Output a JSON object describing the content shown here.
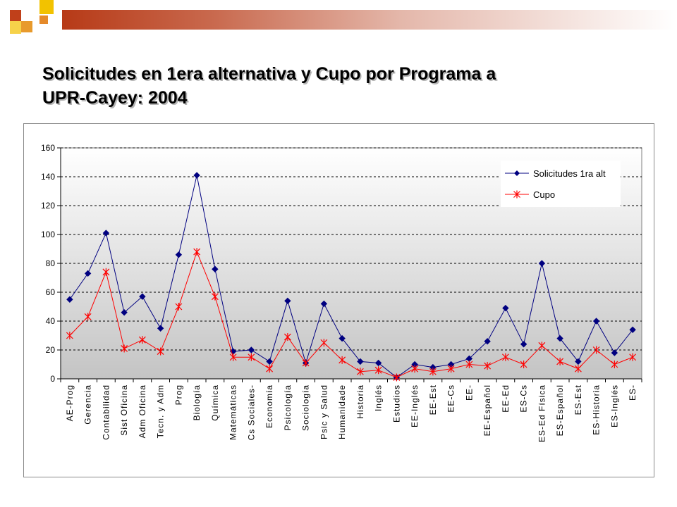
{
  "slide": {
    "title_line1": "Solicitudes en 1era alternativa y Cupo por Programa a",
    "title_line2": "UPR-Cayey:  2004",
    "accent_colors": {
      "dark_orange": "#c0401a",
      "orange": "#e89a2c",
      "gold": "#f2c200"
    }
  },
  "chart_data": {
    "type": "line",
    "title": "",
    "xlabel": "",
    "ylabel": "",
    "ylim": [
      0,
      160
    ],
    "yticks": [
      0,
      20,
      40,
      60,
      80,
      100,
      120,
      140,
      160
    ],
    "grid": "horizontal dashed",
    "legend_position": "top-right",
    "plot_background": "gradient white to gray",
    "categories": [
      "AE-Prog",
      "Gerencia",
      "Contabilidad",
      "Sist Oficina",
      "Adm Oficina",
      "Tecn. y Adm",
      "Prog",
      "Biología",
      "Química",
      "Matemáticas",
      "Cs Sociales-",
      "Economía",
      "Psicología",
      "Sociología",
      "Psic y Salud",
      "Humanidade",
      "Historia",
      "Inglés",
      "Estudios",
      "EE-Inglés",
      "EE-Est",
      "EE-Cs",
      "EE-",
      "EE-Español",
      "EE-Ed",
      "ES-Cs",
      "ES-Ed Física",
      "ES-Español",
      "ES-Est",
      "ES-Historia",
      "ES-Inglés",
      "ES-"
    ],
    "series": [
      {
        "name": "Solicitudes 1ra alt",
        "color": "#000080",
        "marker": "diamond",
        "values": [
          55,
          73,
          101,
          46,
          57,
          35,
          86,
          141,
          76,
          19,
          20,
          12,
          54,
          11,
          52,
          28,
          12,
          11,
          1,
          10,
          8,
          10,
          14,
          26,
          49,
          24,
          80,
          28,
          12,
          40,
          18,
          34
        ]
      },
      {
        "name": "Cupo",
        "color": "#ff0000",
        "marker": "asterisk",
        "values": [
          30,
          43,
          74,
          21,
          27,
          19,
          50,
          88,
          57,
          15,
          15,
          7,
          29,
          11,
          25,
          13,
          5,
          6,
          1,
          7,
          5,
          7,
          10,
          9,
          15,
          10,
          23,
          12,
          7,
          20,
          10,
          15
        ]
      }
    ]
  }
}
